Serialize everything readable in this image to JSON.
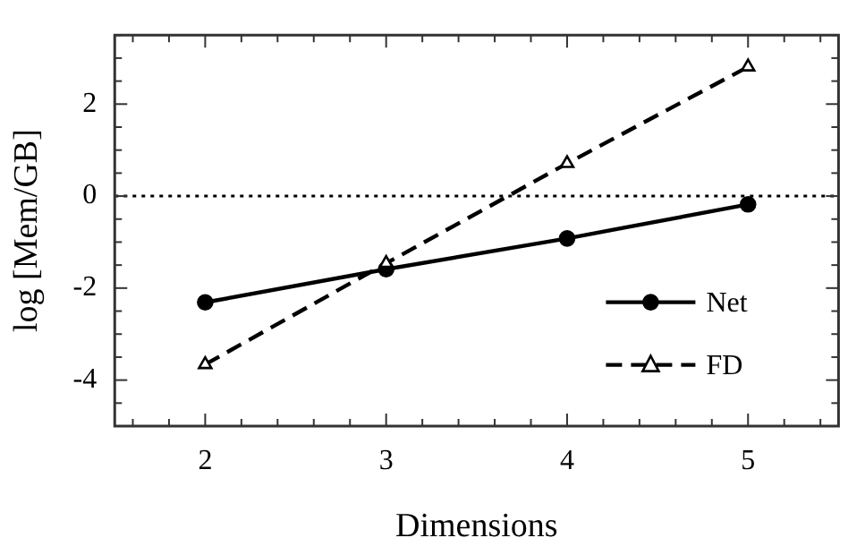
{
  "chart_data": {
    "type": "line",
    "xlabel": "Dimensions",
    "ylabel": "log [Mem/GB]",
    "x": [
      2,
      3,
      4,
      5
    ],
    "series": [
      {
        "name": "Net",
        "color": "#000000",
        "values": [
          -2.31,
          -1.59,
          -0.92,
          -0.18
        ],
        "marker": "circle",
        "line_style": "solid"
      },
      {
        "name": "FD",
        "color": "#000000",
        "values": [
          -3.66,
          -1.46,
          0.71,
          2.81
        ],
        "marker": "triangle",
        "line_style": "dashed"
      }
    ],
    "xlim": [
      1.5,
      5.5
    ],
    "xticks": [
      2,
      3,
      4,
      5
    ],
    "ylim": [
      -5,
      3.5
    ],
    "yticks": [
      -4,
      -2,
      0,
      2
    ],
    "ref_lines": [
      {
        "axis": "y",
        "value": 0,
        "line_style": "dotted"
      }
    ],
    "grid": false,
    "legend": "right"
  }
}
